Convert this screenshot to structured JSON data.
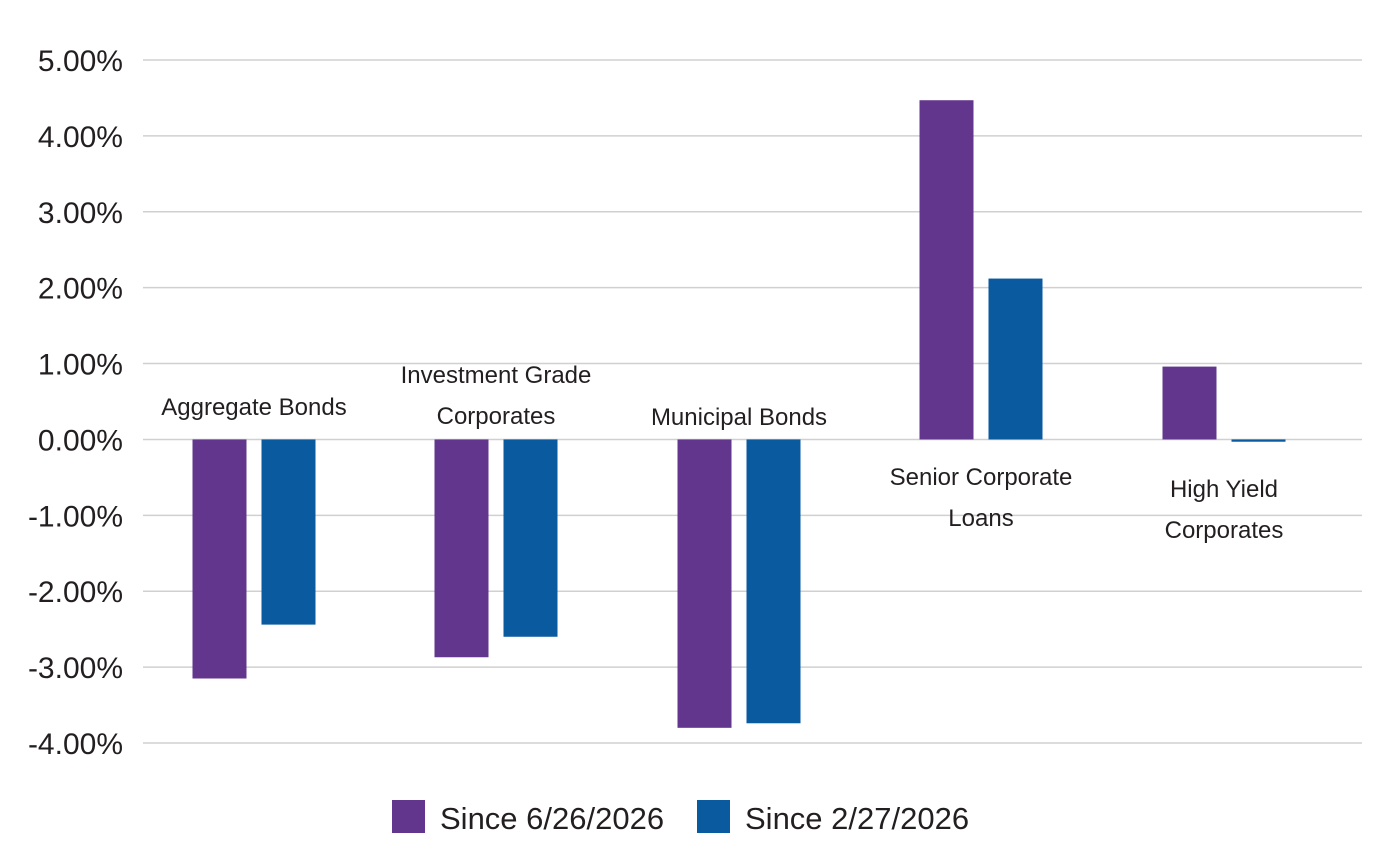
{
  "colors": {
    "series_1": "#62368c",
    "series_2": "#0a5aa0",
    "gridline": "#d0d0d0"
  },
  "chart_data": {
    "type": "bar",
    "title": "",
    "xlabel": "",
    "ylabel": "",
    "ylim": [
      -4,
      5
    ],
    "y_ticks": [
      5,
      4,
      3,
      2,
      1,
      0,
      -1,
      -2,
      -3,
      -4
    ],
    "y_tick_labels": [
      "5.00%",
      "4.00%",
      "3.00%",
      "2.00%",
      "1.00%",
      "0.00%",
      "-1.00%",
      "-2.00%",
      "-3.00%",
      "-4.00%"
    ],
    "grid": true,
    "legend_position": "bottom",
    "categories": [
      [
        "Aggregate Bonds"
      ],
      [
        "Investment Grade",
        "Corporates"
      ],
      [
        "Municipal Bonds"
      ],
      [
        "Senior Corporate",
        "Loans"
      ],
      [
        "High Yield",
        "Corporates"
      ]
    ],
    "series": [
      {
        "name": "Since 6/26/2026",
        "values": [
          -3.15,
          -2.87,
          -3.8,
          4.47,
          0.96
        ]
      },
      {
        "name": "Since 2/27/2026",
        "values": [
          -2.44,
          -2.6,
          -3.74,
          2.12,
          -0.03
        ]
      }
    ]
  }
}
